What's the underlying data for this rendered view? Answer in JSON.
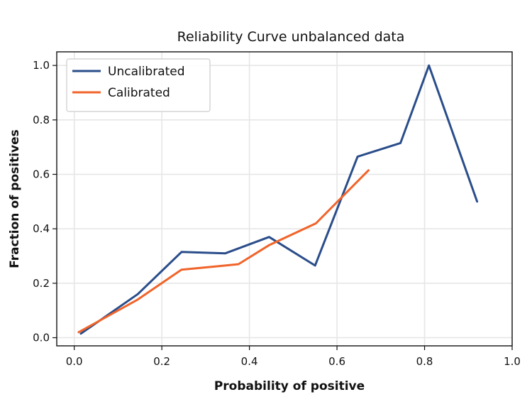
{
  "chart_data": {
    "type": "line",
    "title": "Reliability Curve unbalanced data",
    "xlabel": "Probability of positive",
    "ylabel": "Fraction of positives",
    "xlim": [
      -0.04,
      1.0
    ],
    "ylim": [
      -0.03,
      1.05
    ],
    "x_ticks": [
      0.0,
      0.2,
      0.4,
      0.6,
      0.8,
      1.0
    ],
    "x_tick_labels": [
      "0.0",
      "0.2",
      "0.4",
      "0.6",
      "0.8",
      "1.0"
    ],
    "y_ticks": [
      0.0,
      0.2,
      0.4,
      0.6,
      0.8,
      1.0
    ],
    "y_tick_labels": [
      "0.0",
      "0.2",
      "0.4",
      "0.6",
      "0.8",
      "1.0"
    ],
    "grid": true,
    "legend_position": "top-left",
    "series": [
      {
        "name": "Uncalibrated",
        "color": "#2a4d8a",
        "x": [
          0.015,
          0.145,
          0.245,
          0.345,
          0.445,
          0.55,
          0.647,
          0.745,
          0.81,
          0.92
        ],
        "y": [
          0.015,
          0.16,
          0.315,
          0.31,
          0.37,
          0.265,
          0.665,
          0.715,
          1.0,
          0.5
        ]
      },
      {
        "name": "Calibrated",
        "color": "#f0642a",
        "x": [
          0.01,
          0.145,
          0.245,
          0.345,
          0.375,
          0.445,
          0.552,
          0.672
        ],
        "y": [
          0.02,
          0.14,
          0.25,
          0.265,
          0.27,
          0.34,
          0.42,
          0.615
        ]
      }
    ]
  }
}
